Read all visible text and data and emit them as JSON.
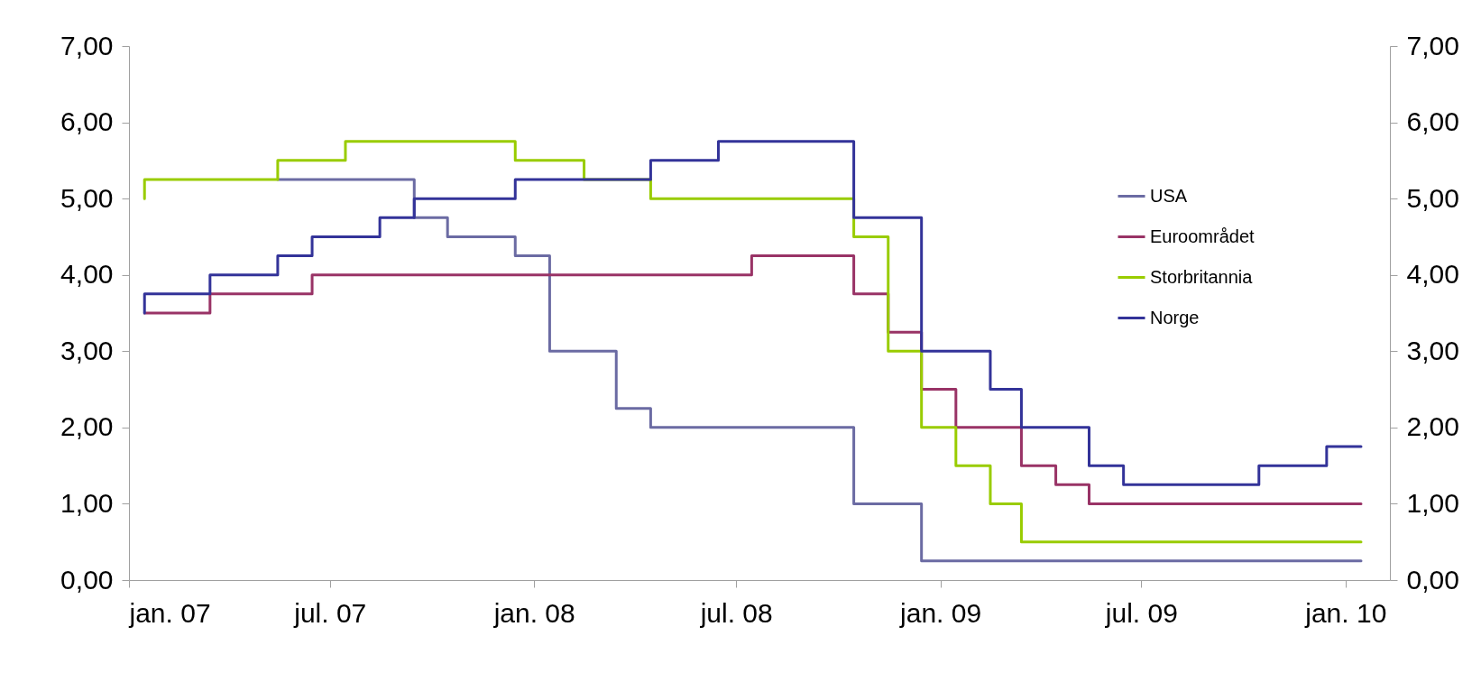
{
  "chart_data": {
    "type": "step",
    "xlim": [
      "2007-01-01",
      "2010-02-10"
    ],
    "xticks": [
      {
        "value": "2007-01-01",
        "label": "jan. 07"
      },
      {
        "value": "2007-07-01",
        "label": "jul. 07"
      },
      {
        "value": "2008-01-01",
        "label": "jan. 08"
      },
      {
        "value": "2008-07-01",
        "label": "jul. 08"
      },
      {
        "value": "2009-01-01",
        "label": "jan. 09"
      },
      {
        "value": "2009-07-01",
        "label": "jul. 09"
      },
      {
        "value": "2010-01-01",
        "label": "jan. 10"
      }
    ],
    "ylim": [
      0,
      7
    ],
    "yticks": [
      {
        "value": 0,
        "label": "0,00"
      },
      {
        "value": 1,
        "label": "1,00"
      },
      {
        "value": 2,
        "label": "2,00"
      },
      {
        "value": 3,
        "label": "3,00"
      },
      {
        "value": 4,
        "label": "4,00"
      },
      {
        "value": 5,
        "label": "5,00"
      },
      {
        "value": 6,
        "label": "6,00"
      },
      {
        "value": 7,
        "label": "7,00"
      }
    ],
    "y2lim": [
      0,
      7
    ],
    "y2ticks": [
      {
        "value": 0,
        "label": "0,00"
      },
      {
        "value": 1,
        "label": "1,00"
      },
      {
        "value": 2,
        "label": "2,00"
      },
      {
        "value": 3,
        "label": "3,00"
      },
      {
        "value": 4,
        "label": "4,00"
      },
      {
        "value": 5,
        "label": "5,00"
      },
      {
        "value": 6,
        "label": "6,00"
      },
      {
        "value": 7,
        "label": "7,00"
      }
    ],
    "legend": "top right",
    "series": [
      {
        "name": "USA",
        "color": "#6b6ba3",
        "x": [
          "2007-05-15",
          "2007-09-15",
          "2007-10-15",
          "2007-12-15",
          "2008-01-15",
          "2008-03-15",
          "2008-04-15",
          "2008-10-15",
          "2008-12-15",
          "2010-01-15"
        ],
        "values": [
          5.25,
          4.75,
          4.5,
          4.25,
          3.0,
          2.25,
          2.0,
          1.0,
          0.25,
          0.25
        ]
      },
      {
        "name": "Euroområdet",
        "color": "#993366",
        "x": [
          "2007-01-15",
          "2007-03-15",
          "2007-06-15",
          "2008-07-15",
          "2008-10-15",
          "2008-11-15",
          "2008-12-15",
          "2009-01-15",
          "2009-03-15",
          "2009-04-15",
          "2009-05-15",
          "2010-01-15"
        ],
        "values": [
          3.5,
          3.75,
          4.0,
          4.25,
          3.75,
          3.25,
          2.5,
          2.0,
          1.5,
          1.25,
          1.0,
          1.0
        ]
      },
      {
        "name": "Storbritannia",
        "color": "#99cc00",
        "x": [
          "2007-01-15",
          "2007-01-15",
          "2007-05-15",
          "2007-07-15",
          "2007-12-15",
          "2008-02-15",
          "2008-04-15",
          "2008-10-15",
          "2008-11-15",
          "2008-12-15",
          "2009-01-15",
          "2009-02-15",
          "2009-03-15",
          "2010-01-15"
        ],
        "values": [
          5.0,
          5.25,
          5.5,
          5.75,
          5.5,
          5.25,
          5.0,
          4.5,
          3.0,
          2.0,
          1.5,
          1.0,
          0.5,
          0.5
        ]
      },
      {
        "name": "Norge",
        "color": "#333399",
        "x": [
          "2007-01-15",
          "2007-01-15",
          "2007-03-15",
          "2007-05-15",
          "2007-06-15",
          "2007-08-15",
          "2007-09-15",
          "2007-12-15",
          "2008-04-15",
          "2008-06-15",
          "2008-10-15",
          "2008-12-15",
          "2009-02-15",
          "2009-03-15",
          "2009-05-15",
          "2009-06-15",
          "2009-10-15",
          "2009-12-15",
          "2010-01-15"
        ],
        "values": [
          3.5,
          3.75,
          4.0,
          4.25,
          4.5,
          4.75,
          5.0,
          5.25,
          5.5,
          5.75,
          4.75,
          3.0,
          2.5,
          2.0,
          1.5,
          1.25,
          1.5,
          1.75,
          1.75
        ]
      }
    ]
  }
}
